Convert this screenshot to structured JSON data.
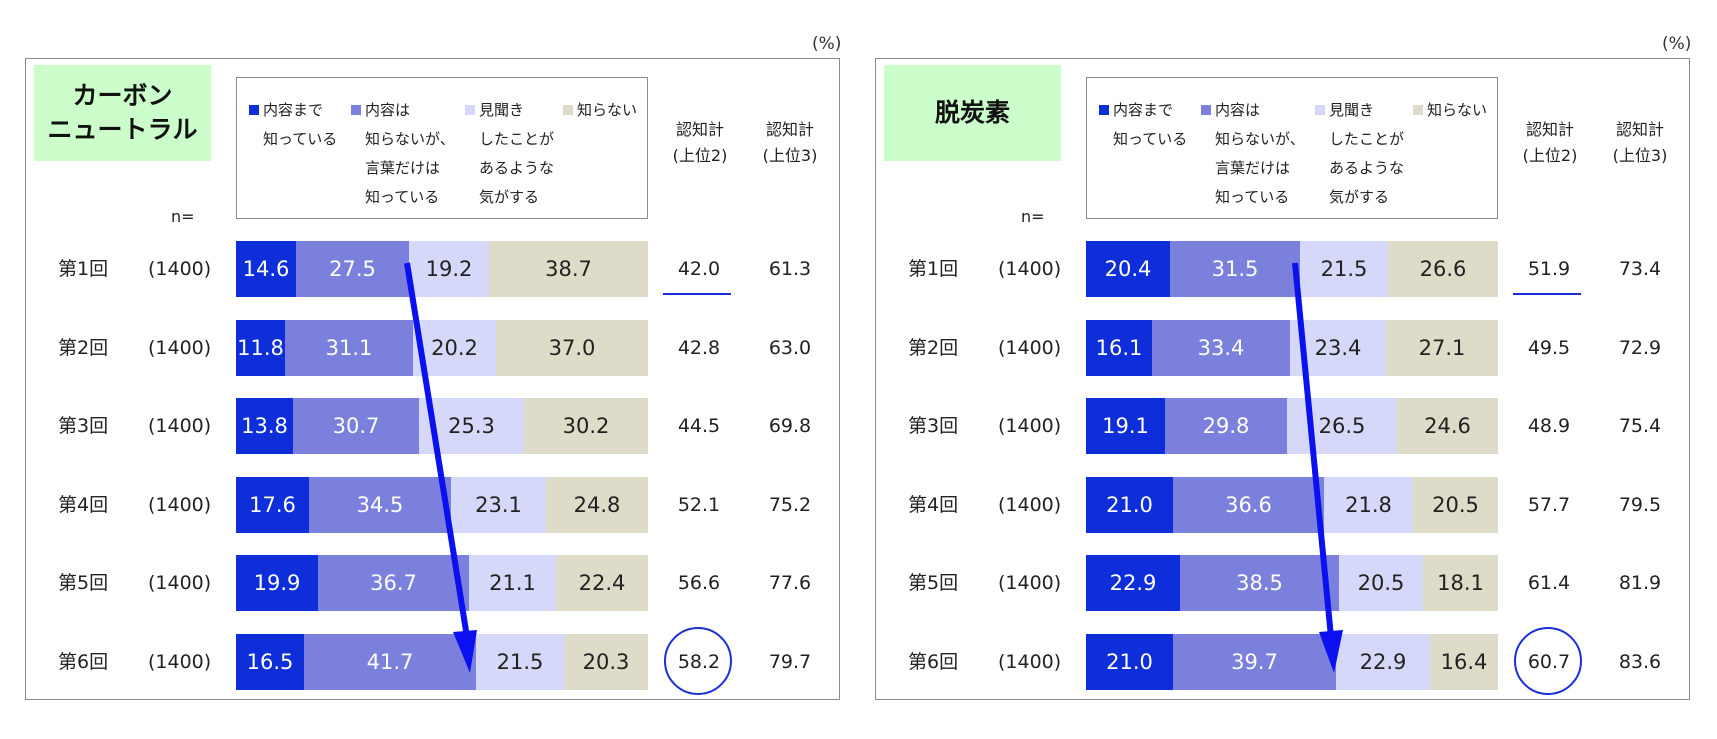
{
  "unit_label": "(%)",
  "n_label": "n=",
  "colors": {
    "seg1": "#0d2ed9",
    "seg2": "#7b80dc",
    "seg3": "#d6d8fa",
    "seg4": "#dedbc8",
    "accent": "#1a2fd8",
    "title_bg": "#ccfecc"
  },
  "legend": [
    {
      "line1": "内容まで",
      "line2": "知っている",
      "line3": "",
      "line4": ""
    },
    {
      "line1": "内容は",
      "line2": "知らないが、",
      "line3": "言葉だけは",
      "line4": "知っている"
    },
    {
      "line1": "見聞き",
      "line2": "したことが",
      "line3": "あるような",
      "line4": "気がする"
    },
    {
      "line1": "知らない",
      "line2": "",
      "line3": "",
      "line4": ""
    }
  ],
  "col_headers": {
    "top2_line1": "認知計",
    "top2_line2": "(上位2)",
    "top3_line1": "認知計",
    "top3_line2": "(上位3)"
  },
  "chart_data": [
    {
      "type": "bar",
      "orientation": "horizontal-stacked-100",
      "title_line1": "カーボン",
      "title_line2": "ニュートラル",
      "categories": [
        "第1回",
        "第2回",
        "第3回",
        "第4回",
        "第5回",
        "第6回"
      ],
      "n": [
        "(1400)",
        "(1400)",
        "(1400)",
        "(1400)",
        "(1400)",
        "(1400)"
      ],
      "series": [
        {
          "name": "内容まで知っている",
          "values": [
            14.6,
            11.8,
            13.8,
            17.6,
            19.9,
            16.5
          ]
        },
        {
          "name": "内容は知らないが、言葉だけは知っている",
          "values": [
            27.5,
            31.1,
            30.7,
            34.5,
            36.7,
            41.7
          ]
        },
        {
          "name": "見聞きしたことがあるような気がする",
          "values": [
            19.2,
            20.2,
            25.3,
            23.1,
            21.1,
            21.5
          ]
        },
        {
          "name": "知らない",
          "values": [
            38.7,
            37.0,
            30.2,
            24.8,
            22.4,
            20.3
          ]
        }
      ],
      "labels": [
        [
          "14.6",
          "27.5",
          "19.2",
          "38.7"
        ],
        [
          "11.8",
          "31.1",
          "20.2",
          "37.0"
        ],
        [
          "13.8",
          "30.7",
          "25.3",
          "30.2"
        ],
        [
          "17.6",
          "34.5",
          "23.1",
          "24.8"
        ],
        [
          "19.9",
          "36.7",
          "21.1",
          "22.4"
        ],
        [
          "16.5",
          "41.7",
          "21.5",
          "20.3"
        ]
      ],
      "top2": [
        "42.0",
        "42.8",
        "44.5",
        "52.1",
        "56.6",
        "58.2"
      ],
      "top3": [
        "61.3",
        "63.0",
        "69.8",
        "75.2",
        "77.6",
        "79.7"
      ],
      "xlim": [
        0,
        100
      ]
    },
    {
      "type": "bar",
      "orientation": "horizontal-stacked-100",
      "title_line1": "脱炭素",
      "title_line2": "",
      "categories": [
        "第1回",
        "第2回",
        "第3回",
        "第4回",
        "第5回",
        "第6回"
      ],
      "n": [
        "(1400)",
        "(1400)",
        "(1400)",
        "(1400)",
        "(1400)",
        "(1400)"
      ],
      "series": [
        {
          "name": "内容まで知っている",
          "values": [
            20.4,
            16.1,
            19.1,
            21.0,
            22.9,
            21.0
          ]
        },
        {
          "name": "内容は知らないが、言葉だけは知っている",
          "values": [
            31.5,
            33.4,
            29.8,
            36.6,
            38.5,
            39.7
          ]
        },
        {
          "name": "見聞きしたことがあるような気がする",
          "values": [
            21.5,
            23.4,
            26.5,
            21.8,
            20.5,
            22.9
          ]
        },
        {
          "name": "知らない",
          "values": [
            26.6,
            27.1,
            24.6,
            20.5,
            18.1,
            16.4
          ]
        }
      ],
      "labels": [
        [
          "20.4",
          "31.5",
          "21.5",
          "26.6"
        ],
        [
          "16.1",
          "33.4",
          "23.4",
          "27.1"
        ],
        [
          "19.1",
          "29.8",
          "26.5",
          "24.6"
        ],
        [
          "21.0",
          "36.6",
          "21.8",
          "20.5"
        ],
        [
          "22.9",
          "38.5",
          "20.5",
          "18.1"
        ],
        [
          "21.0",
          "39.7",
          "22.9",
          "16.4"
        ]
      ],
      "top2": [
        "51.9",
        "49.5",
        "48.9",
        "57.7",
        "61.4",
        "60.7"
      ],
      "top3": [
        "73.4",
        "72.9",
        "75.4",
        "79.5",
        "81.9",
        "83.6"
      ],
      "xlim": [
        0,
        100
      ]
    }
  ]
}
